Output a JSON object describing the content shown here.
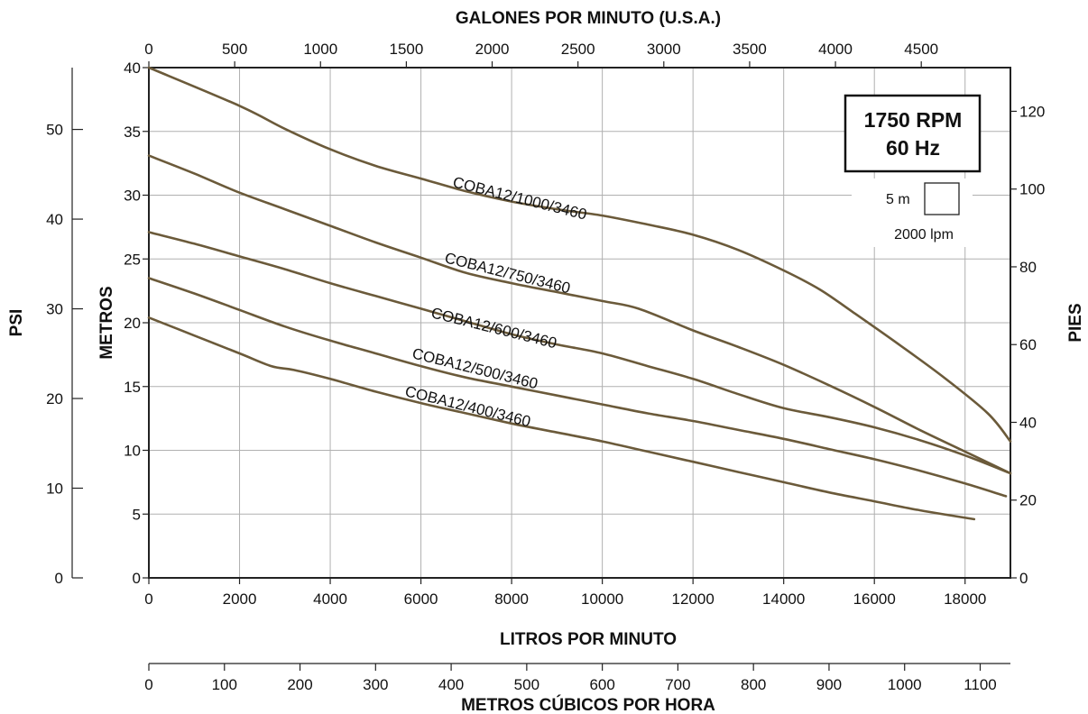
{
  "chart_data": {
    "type": "line",
    "title": "",
    "badge": {
      "line1": "1750 RPM",
      "line2": "60 Hz"
    },
    "scale_box": {
      "height_label": "5 m",
      "flow_label": "2000 lpm"
    },
    "axes": {
      "bottom": {
        "label": "LITROS POR MINUTO",
        "min": 0,
        "max": 19000,
        "ticks": [
          0,
          2000,
          4000,
          6000,
          8000,
          10000,
          12000,
          14000,
          16000,
          18000
        ]
      },
      "top": {
        "label": "GALONES POR MINUTO (U.S.A.)",
        "ticks": [
          0,
          500,
          1000,
          1500,
          2000,
          2500,
          3000,
          3500,
          4000,
          4500
        ]
      },
      "secondary_bottom": {
        "label": "METROS CÚBICOS POR HORA",
        "ticks": [
          0,
          100,
          200,
          300,
          400,
          500,
          600,
          700,
          800,
          900,
          1000,
          1100
        ]
      },
      "left": {
        "label": "METROS",
        "min": 0,
        "max": 40,
        "ticks": [
          0,
          5,
          10,
          15,
          20,
          25,
          30,
          35,
          40
        ]
      },
      "far_left": {
        "label": "PSI",
        "ticks": [
          0,
          10,
          20,
          30,
          40,
          50
        ]
      },
      "right": {
        "label": "PIES",
        "ticks": [
          0,
          20,
          40,
          60,
          80,
          100,
          120
        ]
      }
    },
    "grid": true,
    "line_color": "#6b5a3a",
    "series": [
      {
        "name": "COBA12/1000/3460",
        "x": [
          0,
          2000,
          3000,
          4000,
          5000,
          6000,
          7000,
          8000,
          9000,
          10000,
          11000,
          12000,
          13000,
          14000,
          14800,
          15500,
          16500,
          17500,
          18500,
          19000
        ],
        "y": [
          40,
          37,
          35.2,
          33.6,
          32.3,
          31.3,
          30.3,
          29.5,
          28.9,
          28.4,
          27.7,
          26.9,
          25.7,
          24.1,
          22.6,
          20.9,
          18.4,
          15.8,
          12.9,
          10.7
        ]
      },
      {
        "name": "COBA12/750/3460",
        "x": [
          0,
          1000,
          2000,
          3000,
          4000,
          5000,
          6000,
          7000,
          8000,
          9000,
          10000,
          10800,
          12000,
          13000,
          14000,
          15000,
          16000,
          17000,
          18000,
          19000
        ],
        "y": [
          33.1,
          31.7,
          30.2,
          28.9,
          27.6,
          26.3,
          25.1,
          23.9,
          23.1,
          22.4,
          21.7,
          21.1,
          19.4,
          18.1,
          16.7,
          15.1,
          13.4,
          11.6,
          9.9,
          8.2
        ]
      },
      {
        "name": "COBA12/600/3460",
        "x": [
          0,
          1000,
          2000,
          3000,
          4000,
          5000,
          6000,
          7000,
          8000,
          9000,
          10000,
          11000,
          12000,
          13000,
          14000,
          15000,
          16000,
          17000,
          18000,
          19000
        ],
        "y": [
          27.1,
          26.2,
          25.2,
          24.2,
          23.1,
          22.1,
          21.1,
          20.1,
          19.1,
          18.3,
          17.6,
          16.6,
          15.6,
          14.4,
          13.3,
          12.6,
          11.8,
          10.8,
          9.6,
          8.2
        ]
      },
      {
        "name": "COBA12/500/3460",
        "x": [
          0,
          1000,
          2000,
          3000,
          4000,
          5000,
          6000,
          7000,
          8000,
          9000,
          10000,
          11000,
          12000,
          13000,
          14000,
          15000,
          16000,
          17000,
          18000,
          18900
        ],
        "y": [
          23.5,
          22.3,
          21.0,
          19.7,
          18.6,
          17.6,
          16.6,
          15.7,
          15.0,
          14.3,
          13.6,
          12.9,
          12.3,
          11.6,
          10.9,
          10.1,
          9.3,
          8.4,
          7.4,
          6.4
        ]
      },
      {
        "name": "COBA12/400/3460",
        "x": [
          0,
          1000,
          2000,
          2700,
          3200,
          4000,
          5000,
          6000,
          7000,
          8000,
          9000,
          10000,
          11000,
          12000,
          13000,
          14000,
          15000,
          16000,
          17000,
          18200
        ],
        "y": [
          20.4,
          19.0,
          17.6,
          16.6,
          16.3,
          15.6,
          14.6,
          13.7,
          12.9,
          12.1,
          11.4,
          10.7,
          9.9,
          9.1,
          8.3,
          7.5,
          6.7,
          6.0,
          5.3,
          4.6
        ]
      }
    ]
  }
}
